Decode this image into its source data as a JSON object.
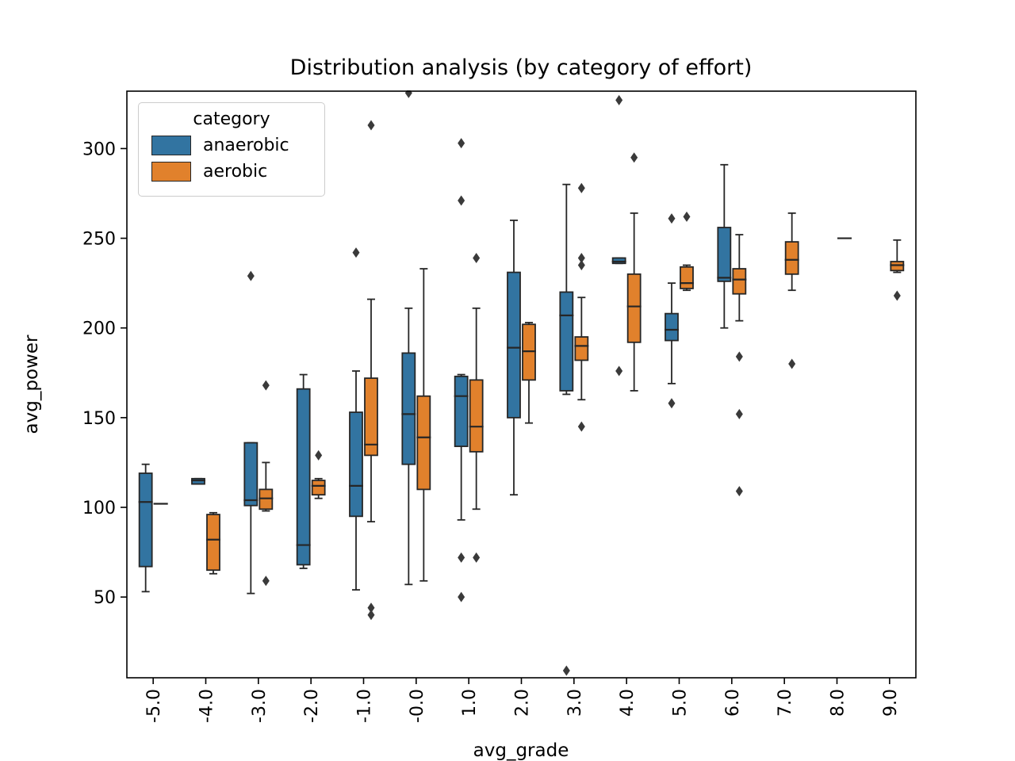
{
  "chart_data": {
    "type": "boxplot",
    "title": "Distribution analysis (by category of effort)",
    "xlabel": "avg_grade",
    "ylabel": "avg_power",
    "categories": [
      "-5.0",
      "-4.0",
      "-3.0",
      "-2.0",
      "-1.0",
      "-0.0",
      "1.0",
      "2.0",
      "3.0",
      "4.0",
      "5.0",
      "6.0",
      "7.0",
      "8.0",
      "9.0"
    ],
    "ylim": [
      5,
      332
    ],
    "yticks": [
      50,
      100,
      150,
      200,
      250,
      300
    ],
    "grid": false,
    "legend": {
      "title": "category",
      "position": "upper left",
      "entries": [
        {
          "label": "anaerobic",
          "color": "#3274a1"
        },
        {
          "label": "aerobic",
          "color": "#e1812c"
        }
      ]
    },
    "series": [
      {
        "name": "anaerobic",
        "color": "#3274a1",
        "boxes": [
          {
            "whislo": 53,
            "q1": 67,
            "med": 103,
            "q3": 119,
            "whishi": 124,
            "fliers": []
          },
          {
            "whislo": 113,
            "q1": 113,
            "med": 115,
            "q3": 116,
            "whishi": 116,
            "fliers": []
          },
          {
            "whislo": 52,
            "q1": 101,
            "med": 104,
            "q3": 136,
            "whishi": 136,
            "fliers": [
              229
            ]
          },
          {
            "whislo": 66,
            "q1": 68,
            "med": 79,
            "q3": 166,
            "whishi": 174,
            "fliers": []
          },
          {
            "whislo": 54,
            "q1": 95,
            "med": 112,
            "q3": 153,
            "whishi": 176,
            "fliers": [
              242
            ]
          },
          {
            "whislo": 57,
            "q1": 124,
            "med": 152,
            "q3": 186,
            "whishi": 211,
            "fliers": [
              331
            ]
          },
          {
            "whislo": 93,
            "q1": 134,
            "med": 162,
            "q3": 173,
            "whishi": 174,
            "fliers": [
              303,
              271,
              72,
              50
            ]
          },
          {
            "whislo": 107,
            "q1": 150,
            "med": 189,
            "q3": 231,
            "whishi": 260,
            "fliers": []
          },
          {
            "whislo": 163,
            "q1": 165,
            "med": 207,
            "q3": 220,
            "whishi": 280,
            "fliers": [
              9
            ]
          },
          {
            "whislo": 236,
            "q1": 236,
            "med": 237,
            "q3": 239,
            "whishi": 239,
            "fliers": [
              327,
              176
            ]
          },
          {
            "whislo": 169,
            "q1": 193,
            "med": 199,
            "q3": 208,
            "whishi": 225,
            "fliers": [
              261,
              158
            ]
          },
          {
            "whislo": 200,
            "q1": 226,
            "med": 228,
            "q3": 256,
            "whishi": 291,
            "fliers": []
          },
          null,
          null,
          null
        ]
      },
      {
        "name": "aerobic",
        "color": "#e1812c",
        "boxes": [
          {
            "whislo": 102,
            "q1": 102,
            "med": 102,
            "q3": 102,
            "whishi": 102,
            "fliers": []
          },
          {
            "whislo": 63,
            "q1": 65,
            "med": 82,
            "q3": 96,
            "whishi": 97,
            "fliers": []
          },
          {
            "whislo": 98,
            "q1": 99,
            "med": 105,
            "q3": 110,
            "whishi": 125,
            "fliers": [
              168,
              59
            ]
          },
          {
            "whislo": 105,
            "q1": 107,
            "med": 112,
            "q3": 115,
            "whishi": 116,
            "fliers": [
              129
            ]
          },
          {
            "whislo": 92,
            "q1": 129,
            "med": 135,
            "q3": 172,
            "whishi": 216,
            "fliers": [
              313,
              44,
              40
            ]
          },
          {
            "whislo": 59,
            "q1": 110,
            "med": 139,
            "q3": 162,
            "whishi": 233,
            "fliers": []
          },
          {
            "whislo": 99,
            "q1": 131,
            "med": 145,
            "q3": 171,
            "whishi": 211,
            "fliers": [
              239,
              72
            ]
          },
          {
            "whislo": 147,
            "q1": 171,
            "med": 187,
            "q3": 202,
            "whishi": 203,
            "fliers": []
          },
          {
            "whislo": 160,
            "q1": 182,
            "med": 190,
            "q3": 195,
            "whishi": 217,
            "fliers": [
              278,
              239,
              235,
              145
            ]
          },
          {
            "whislo": 165,
            "q1": 192,
            "med": 212,
            "q3": 230,
            "whishi": 264,
            "fliers": [
              295
            ]
          },
          {
            "whislo": 221,
            "q1": 222,
            "med": 225,
            "q3": 234,
            "whishi": 235,
            "fliers": [
              262
            ]
          },
          {
            "whislo": 204,
            "q1": 219,
            "med": 227,
            "q3": 233,
            "whishi": 252,
            "fliers": [
              184,
              152,
              109
            ]
          },
          {
            "whislo": 221,
            "q1": 230,
            "med": 238,
            "q3": 248,
            "whishi": 264,
            "fliers": [
              180
            ]
          },
          {
            "whislo": 250,
            "q1": 250,
            "med": 250,
            "q3": 250,
            "whishi": 250,
            "fliers": []
          },
          {
            "whislo": 231,
            "q1": 232,
            "med": 235,
            "q3": 237,
            "whishi": 249,
            "fliers": [
              218
            ]
          }
        ]
      }
    ]
  }
}
